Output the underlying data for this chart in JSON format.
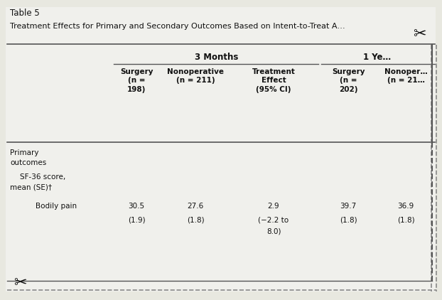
{
  "title_line1": "Table 5",
  "title_line2": "Treatment Effects for Primary and Secondary Outcomes Based on Intent-to-Treat A…",
  "group_header_3m": "3 Months",
  "group_header_1y": "1 Ye…",
  "col_headers": [
    "Surgery\n(n =\n198)",
    "Nonoperative\n(n = 211)",
    "Treatment\nEffect\n(95% CI)",
    "Surgery\n(n =\n202)",
    "Nonoper…\n(n = 21…"
  ],
  "row_section": "Primary\noutcomes",
  "row_subsection_l1": "   SF-36 score,",
  "row_subsection_l2": "mean (SE)†",
  "row_label": "Bodily pain",
  "row_values_line1": [
    "30.5",
    "27.6",
    "2.9",
    "39.7",
    "36.9"
  ],
  "row_values_line2": [
    "(1.9)",
    "(1.8)",
    "(−2.2 to",
    "(1.8)",
    "(1.8)"
  ],
  "row_values_line3": [
    "",
    "",
    "8.0)",
    "",
    ""
  ],
  "bg_color": "#e8e8e0",
  "white_color": "#f5f5f2",
  "text_color": "#111111",
  "line_color": "#555555",
  "dashed_line_color": "#888888",
  "font_size_title1": 8.5,
  "font_size_title2": 8.0,
  "font_size_header": 7.5,
  "font_size_body": 7.5
}
